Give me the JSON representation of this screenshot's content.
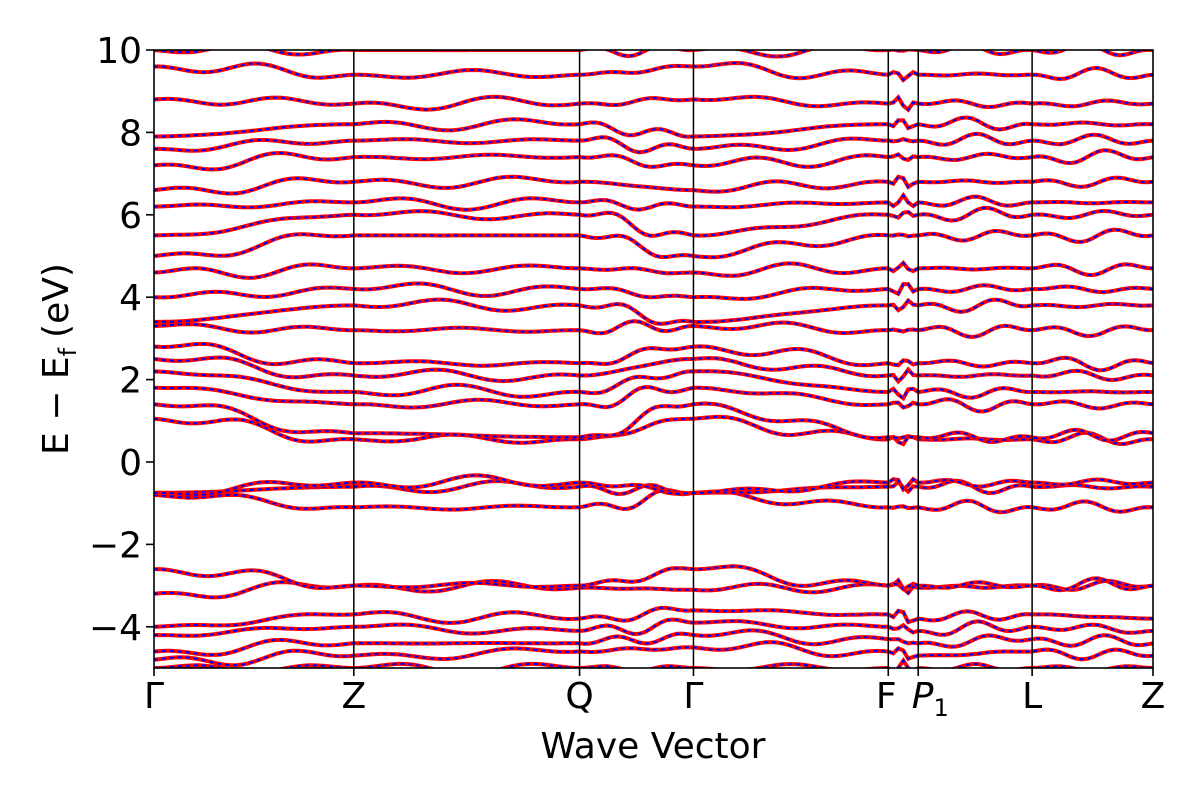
{
  "chart_data": {
    "type": "line",
    "xlabel": "Wave Vector",
    "ylabel": "E − E_f (eV)",
    "ylabel_parts": {
      "main": "E − E",
      "sub": "f",
      "unit": "(eV)"
    },
    "ylim": [
      -5,
      10
    ],
    "yticks": [
      -4,
      -2,
      0,
      2,
      4,
      6,
      8,
      10
    ],
    "ytick_labels": [
      "−4",
      "−2",
      "0",
      "2",
      "4",
      "6",
      "8",
      "10"
    ],
    "grid": false,
    "legend": "none",
    "high_symmetry_points": [
      {
        "label": "Γ",
        "position": 0.0
      },
      {
        "label": "Z",
        "position": 0.2
      },
      {
        "label": "Q",
        "position": 0.426
      },
      {
        "label": "Γ",
        "position": 0.54
      },
      {
        "label": "F",
        "position": 0.735
      },
      {
        "label": "P",
        "sub": "1",
        "position": 0.765
      },
      {
        "label": "L",
        "position": 0.879
      },
      {
        "label": "Z",
        "position": 1.0
      }
    ],
    "series": [
      {
        "color": "#ff0000",
        "style": "solid"
      },
      {
        "color": "#0000ff",
        "style": "dashed"
      }
    ],
    "bands": [
      [
        -5.0,
        -5.0,
        -5.0,
        -5.0,
        -5.0,
        -5.0,
        -5.0,
        -5.0
      ],
      [
        -4.8,
        -4.7,
        -4.6,
        -4.5,
        -4.6,
        -4.7,
        -4.6,
        -4.7
      ],
      [
        -4.6,
        -4.4,
        -4.4,
        -4.2,
        -4.3,
        -4.4,
        -4.3,
        -4.4
      ],
      [
        -4.2,
        -4.0,
        -4.1,
        -3.9,
        -4.0,
        -4.1,
        -4.0,
        -4.1
      ],
      [
        -4.0,
        -3.7,
        -3.8,
        -3.6,
        -3.7,
        -3.8,
        -3.7,
        -3.8
      ],
      [
        -3.2,
        -3.0,
        -3.05,
        -3.1,
        -3.0,
        -3.05,
        -3.0,
        -3.0
      ],
      [
        -2.6,
        -3.0,
        -3.0,
        -2.6,
        -3.0,
        -3.0,
        -3.0,
        -3.0
      ],
      [
        -0.8,
        -1.1,
        -1.1,
        -0.75,
        -1.1,
        -1.1,
        -1.1,
        -1.1
      ],
      [
        -0.75,
        -0.6,
        -0.6,
        -0.75,
        -0.6,
        -0.6,
        -0.6,
        -0.6
      ],
      [
        -0.75,
        -0.5,
        -0.5,
        -0.75,
        -0.5,
        -0.5,
        -0.5,
        -0.5
      ],
      [
        1.05,
        0.55,
        0.55,
        1.05,
        0.55,
        0.55,
        0.55,
        0.55
      ],
      [
        1.4,
        0.7,
        0.6,
        1.4,
        0.6,
        0.6,
        0.6,
        0.7
      ],
      [
        1.8,
        1.4,
        1.4,
        1.8,
        1.4,
        1.4,
        1.4,
        1.4
      ],
      [
        2.2,
        1.7,
        1.7,
        2.2,
        1.7,
        1.7,
        1.7,
        1.7
      ],
      [
        2.5,
        2.1,
        2.1,
        2.5,
        2.1,
        2.1,
        2.1,
        2.1
      ],
      [
        2.8,
        2.4,
        2.4,
        2.8,
        2.4,
        2.4,
        2.4,
        2.4
      ],
      [
        3.3,
        3.2,
        3.2,
        3.3,
        3.2,
        3.2,
        3.2,
        3.2
      ],
      [
        3.4,
        3.8,
        3.8,
        3.4,
        3.8,
        3.8,
        3.8,
        3.8
      ],
      [
        4.0,
        4.2,
        4.2,
        4.0,
        4.2,
        4.2,
        4.2,
        4.2
      ],
      [
        4.6,
        4.7,
        4.7,
        4.6,
        4.7,
        4.7,
        4.7,
        4.7
      ],
      [
        5.0,
        5.5,
        5.5,
        5.0,
        5.5,
        5.5,
        5.5,
        5.5
      ],
      [
        5.5,
        6.0,
        6.0,
        5.5,
        6.0,
        6.0,
        6.0,
        6.0
      ],
      [
        6.2,
        6.3,
        6.3,
        6.2,
        6.3,
        6.3,
        6.3,
        6.3
      ],
      [
        6.6,
        6.8,
        6.8,
        6.6,
        6.8,
        6.8,
        6.8,
        6.8
      ],
      [
        7.2,
        7.4,
        7.4,
        7.2,
        7.4,
        7.4,
        7.4,
        7.4
      ],
      [
        7.6,
        7.8,
        7.8,
        7.6,
        7.8,
        7.8,
        7.8,
        7.8
      ],
      [
        7.9,
        8.2,
        8.2,
        7.9,
        8.2,
        8.2,
        8.2,
        8.2
      ],
      [
        8.8,
        8.7,
        8.7,
        8.8,
        8.7,
        8.7,
        8.7,
        8.7
      ],
      [
        9.6,
        9.4,
        9.4,
        9.6,
        9.4,
        9.4,
        9.4,
        9.4
      ],
      [
        10.0,
        10.0,
        10.0,
        10.0,
        10.0,
        10.0,
        10.0,
        10.0
      ]
    ]
  }
}
